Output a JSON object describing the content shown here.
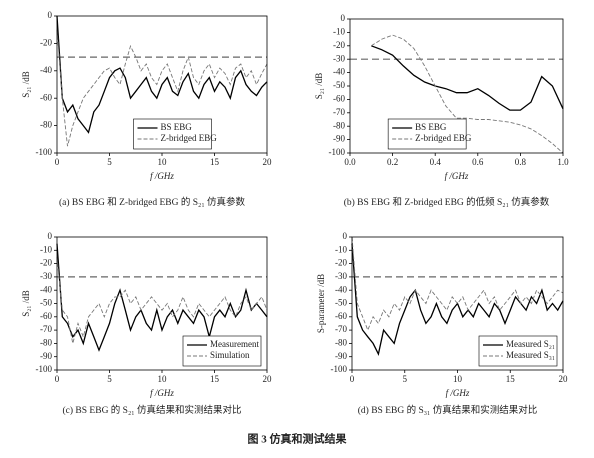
{
  "chart_data": [
    {
      "type": "line",
      "caption": "(a) BS EBG 和 Z-bridged EBG 的 S₂₁ 仿真参数",
      "xlabel": "f /GHz",
      "ylabel": "S₂₁ /dB",
      "xlim": [
        0,
        20
      ],
      "xticks": [
        0,
        5,
        10,
        15,
        20
      ],
      "ylim": [
        -100,
        0
      ],
      "yticks": [
        0,
        -20,
        -40,
        -60,
        -80,
        -100
      ],
      "reference_line": -30,
      "legend": "lower left",
      "x": [
        0,
        0.5,
        1,
        1.5,
        2,
        2.5,
        3,
        3.5,
        4,
        4.5,
        5,
        5.5,
        6,
        6.5,
        7,
        7.5,
        8,
        8.5,
        9,
        9.5,
        10,
        10.5,
        11,
        11.5,
        12,
        12.5,
        13,
        13.5,
        14,
        14.5,
        15,
        15.5,
        16,
        16.5,
        17,
        17.5,
        18,
        18.5,
        19,
        19.5,
        20
      ],
      "series": [
        {
          "name": "BS EBG",
          "color": "#000000",
          "linestyle": "solid",
          "values": [
            0,
            -60,
            -70,
            -65,
            -75,
            -80,
            -85,
            -70,
            -65,
            -55,
            -45,
            -40,
            -38,
            -45,
            -60,
            -55,
            -50,
            -45,
            -55,
            -60,
            -50,
            -45,
            -55,
            -58,
            -48,
            -42,
            -55,
            -60,
            -50,
            -45,
            -55,
            -48,
            -52,
            -60,
            -45,
            -40,
            -50,
            -55,
            -58,
            -52,
            -48
          ]
        },
        {
          "name": "Z-bridged EBG",
          "color": "#777777",
          "linestyle": "dashed",
          "values": [
            -10,
            -60,
            -95,
            -80,
            -70,
            -60,
            -55,
            -50,
            -45,
            -40,
            -38,
            -45,
            -50,
            -35,
            -22,
            -30,
            -40,
            -35,
            -45,
            -50,
            -40,
            -35,
            -45,
            -55,
            -40,
            -30,
            -45,
            -50,
            -40,
            -35,
            -45,
            -38,
            -42,
            -50,
            -38,
            -35,
            -45,
            -40,
            -50,
            -42,
            -35
          ]
        }
      ]
    },
    {
      "type": "line",
      "caption": "(b) BS EBG 和 Z-bridged EBG 的低频 S₂₁ 仿真参数",
      "xlabel": "f /GHz",
      "ylabel": "S₂₁ /dB",
      "xlim": [
        0,
        1
      ],
      "xticks": [
        {
          "value": 0,
          "label": "0.0"
        },
        0.2,
        0.4,
        0.6,
        0.8,
        {
          "value": 1,
          "label": "1.0"
        }
      ],
      "ylim": [
        -100,
        0
      ],
      "yticks": [
        0,
        -10,
        -20,
        -30,
        -40,
        -50,
        -60,
        -70,
        -80,
        -90,
        -100
      ],
      "reference_line": -30,
      "legend": "lower left",
      "x": [
        0.1,
        0.15,
        0.2,
        0.25,
        0.3,
        0.35,
        0.4,
        0.45,
        0.5,
        0.55,
        0.6,
        0.65,
        0.7,
        0.75,
        0.8,
        0.85,
        0.9,
        0.95,
        1
      ],
      "series": [
        {
          "name": "BS EBG",
          "color": "#000000",
          "linestyle": "solid",
          "values": [
            -20,
            -23,
            -27,
            -35,
            -42,
            -47,
            -50,
            -52,
            -55,
            -55,
            -52,
            -57,
            -63,
            -68,
            -68,
            -62,
            -43,
            -50,
            -67
          ]
        },
        {
          "name": "Z-bridged EBG",
          "color": "#777777",
          "linestyle": "dashed",
          "values": [
            -20,
            -15,
            -12,
            -15,
            -22,
            -35,
            -50,
            -65,
            -74,
            -74,
            -75,
            -75,
            -76,
            -77,
            -79,
            -82,
            -87,
            -93,
            -100
          ]
        }
      ]
    },
    {
      "type": "line",
      "caption": "(c) BS EBG 的 S₂₁ 仿真结果和实测结果对比",
      "xlabel": "f /GHz",
      "ylabel": "S₂₁ /dB",
      "xlim": [
        0,
        20
      ],
      "xticks": [
        0,
        5,
        10,
        15,
        20
      ],
      "ylim": [
        -100,
        0
      ],
      "yticks": [
        0,
        -10,
        -20,
        -30,
        -40,
        -50,
        -60,
        -70,
        -80,
        -90,
        -100
      ],
      "reference_line": -30,
      "legend": "lower right",
      "x": [
        0,
        0.5,
        1,
        1.5,
        2,
        2.5,
        3,
        3.5,
        4,
        4.5,
        5,
        5.5,
        6,
        6.5,
        7,
        7.5,
        8,
        8.5,
        9,
        9.5,
        10,
        10.5,
        11,
        11.5,
        12,
        12.5,
        13,
        13.5,
        14,
        14.5,
        15,
        15.5,
        16,
        16.5,
        17,
        17.5,
        18,
        18.5,
        19,
        19.5,
        20
      ],
      "series": [
        {
          "name": "Measurement",
          "color": "#000000",
          "linestyle": "solid",
          "values": [
            -5,
            -60,
            -65,
            -75,
            -70,
            -80,
            -65,
            -75,
            -85,
            -75,
            -65,
            -50,
            -40,
            -55,
            -70,
            -60,
            -55,
            -65,
            -70,
            -55,
            -70,
            -60,
            -55,
            -65,
            -55,
            -60,
            -65,
            -55,
            -60,
            -75,
            -60,
            -55,
            -60,
            -50,
            -60,
            -55,
            -40,
            -55,
            -50,
            -55,
            -60
          ]
        },
        {
          "name": "Simulation",
          "color": "#777777",
          "linestyle": "dashed",
          "values": [
            -15,
            -55,
            -60,
            -80,
            -65,
            -75,
            -60,
            -55,
            -50,
            -60,
            -50,
            -45,
            -45,
            -40,
            -50,
            -45,
            -55,
            -50,
            -45,
            -50,
            -55,
            -50,
            -60,
            -55,
            -45,
            -55,
            -60,
            -50,
            -55,
            -60,
            -55,
            -50,
            -45,
            -55,
            -60,
            -50,
            -45,
            -55,
            -50,
            -45,
            -55
          ]
        }
      ]
    },
    {
      "type": "line",
      "caption": "(d) BS EBG 的 S₃₁ 仿真结果和实测结果对比",
      "xlabel": "f /GHz",
      "ylabel": "S-parameter /dB",
      "xlim": [
        0,
        20
      ],
      "xticks": [
        0,
        5,
        10,
        15,
        20
      ],
      "ylim": [
        -100,
        0
      ],
      "yticks": [
        0,
        -10,
        -20,
        -30,
        -40,
        -50,
        -60,
        -70,
        -80,
        -90,
        -100
      ],
      "reference_line": -30,
      "legend": "lower right",
      "x": [
        0,
        0.5,
        1,
        1.5,
        2,
        2.5,
        3,
        3.5,
        4,
        4.5,
        5,
        5.5,
        6,
        6.5,
        7,
        7.5,
        8,
        8.5,
        9,
        9.5,
        10,
        10.5,
        11,
        11.5,
        12,
        12.5,
        13,
        13.5,
        14,
        14.5,
        15,
        15.5,
        16,
        16.5,
        17,
        17.5,
        18,
        18.5,
        19,
        19.5,
        20
      ],
      "series": [
        {
          "name": "Measured S₂₁",
          "color": "#000000",
          "linestyle": "solid",
          "values": [
            -5,
            -60,
            -70,
            -75,
            -80,
            -88,
            -70,
            -75,
            -80,
            -65,
            -55,
            -45,
            -40,
            -55,
            -65,
            -60,
            -50,
            -60,
            -65,
            -55,
            -50,
            -60,
            -55,
            -60,
            -50,
            -55,
            -60,
            -50,
            -55,
            -65,
            -55,
            -45,
            -50,
            -55,
            -45,
            -50,
            -40,
            -55,
            -50,
            -55,
            -48
          ]
        },
        {
          "name": "Measured S₃₁",
          "color": "#777777",
          "linestyle": "dashed",
          "values": [
            0,
            -50,
            -60,
            -70,
            -60,
            -65,
            -55,
            -60,
            -50,
            -55,
            -45,
            -50,
            -40,
            -45,
            -50,
            -40,
            -45,
            -50,
            -55,
            -45,
            -50,
            -45,
            -55,
            -50,
            -45,
            -40,
            -50,
            -45,
            -55,
            -50,
            -45,
            -40,
            -50,
            -45,
            -50,
            -40,
            -45,
            -50,
            -45,
            -40,
            -42
          ]
        }
      ]
    }
  ],
  "figure_caption": "图 3   仿真和测试结果"
}
